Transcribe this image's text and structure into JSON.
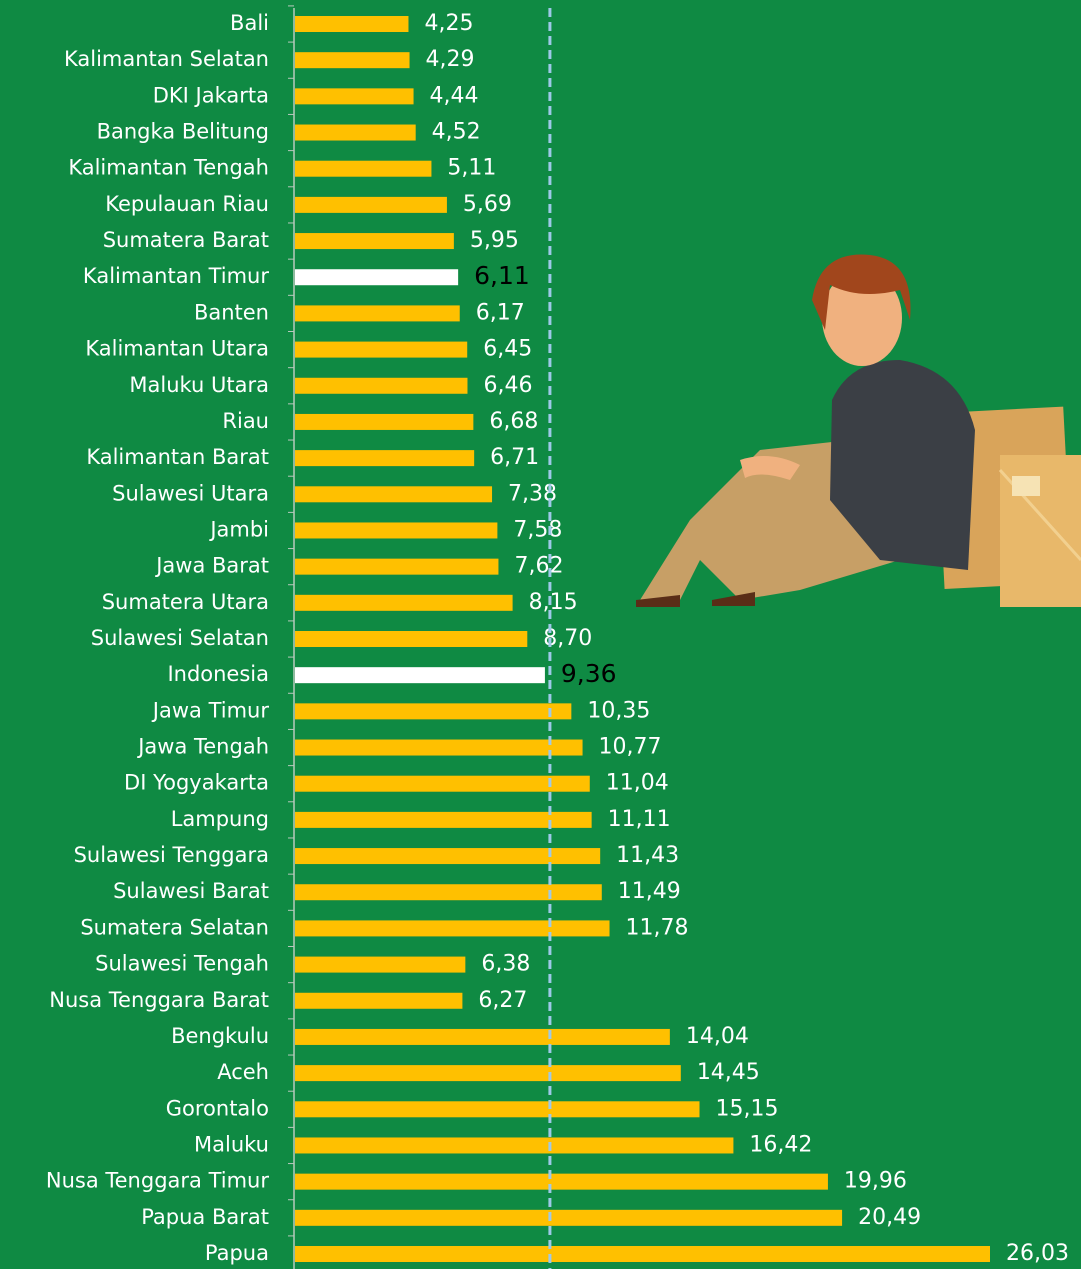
{
  "chart_data": {
    "type": "bar",
    "orientation": "horizontal",
    "categories": [
      "Bali",
      "Kalimantan Selatan",
      "DKI Jakarta",
      "Bangka Belitung",
      "Kalimantan Tengah",
      "Kepulauan Riau",
      "Sumatera Barat",
      "Kalimantan Timur",
      "Banten",
      "Kalimantan Utara",
      "Maluku Utara",
      "Riau",
      "Kalimantan Barat",
      "Sulawesi Utara",
      "Jambi",
      "Jawa Barat",
      "Sumatera Utara",
      "Sulawesi Selatan",
      "Indonesia",
      "Jawa Timur",
      "Jawa Tengah",
      "DI Yogyakarta",
      "Lampung",
      "Sulawesi Tenggara",
      "Sulawesi Barat",
      "Sumatera Selatan",
      "Sulawesi Tengah",
      "Nusa Tenggara Barat",
      "Bengkulu",
      "Aceh",
      "Gorontalo",
      "Maluku",
      "Nusa Tenggara Timur",
      "Papua Barat",
      "Papua"
    ],
    "values": [
      4.25,
      4.29,
      4.44,
      4.52,
      5.11,
      5.69,
      5.95,
      6.11,
      6.17,
      6.45,
      6.46,
      6.68,
      6.71,
      7.38,
      7.58,
      7.62,
      8.15,
      8.7,
      9.36,
      10.35,
      10.77,
      11.04,
      11.11,
      11.43,
      11.49,
      11.78,
      6.38,
      6.27,
      14.04,
      14.45,
      15.15,
      16.42,
      19.96,
      20.49,
      26.03
    ],
    "value_labels": [
      "4,25",
      "4,29",
      "4,44",
      "4,52",
      "5,11",
      "5,69",
      "5,95",
      "6,11",
      "6,17",
      "6,45",
      "6,46",
      "6,68",
      "6,71",
      "7,38",
      "7,58",
      "7,62",
      "8,15",
      "8,70",
      "9,36",
      "10,35",
      "10,77",
      "11,04",
      "11,11",
      "11,43",
      "11,49",
      "11,78",
      "6,38",
      "6,27",
      "14,04",
      "14,45",
      "15,15",
      "16,42",
      "19,96",
      "20,49",
      "26,03"
    ],
    "color": "#ffc000",
    "highlight_color": "#ffffff",
    "highlighted": [
      "Kalimantan Timur",
      "Indonesia"
    ],
    "reference_line": "Indonesia"
  }
}
